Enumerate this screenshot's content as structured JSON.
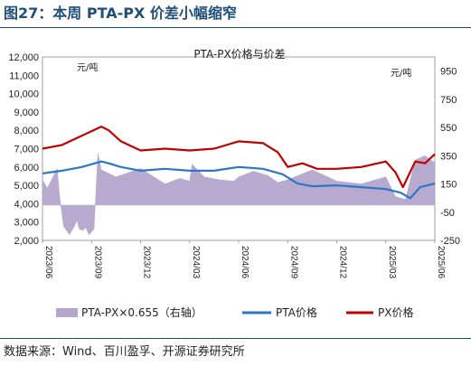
{
  "figure": {
    "label": "图27：本周 PTA-PX 价差小幅缩窄",
    "source": "数据来源：Wind、百川盈孚、开源证券研究所"
  },
  "chart_data": {
    "type": "line",
    "title": "PTA-PX价格与价差",
    "left_unit": "元/吨",
    "right_unit": "元/吨",
    "left_axis": {
      "min": 2000,
      "max": 12000,
      "ticks": [
        "12,000",
        "11,000",
        "10,000",
        "9,000",
        "8,000",
        "7,000",
        "6,000",
        "5,000",
        "4,000",
        "3,000",
        "2,000"
      ]
    },
    "right_axis": {
      "min": -250,
      "max": 1050,
      "ticks": [
        "950",
        "750",
        "550",
        "350",
        "150",
        "-50",
        "-250"
      ]
    },
    "x_labels": [
      "2023/06",
      "2023/09",
      "2023/12",
      "2024/03",
      "2024/06",
      "2024/09",
      "2024/12",
      "2025/03",
      "2025/06"
    ],
    "colors": {
      "spread": "#b4a6cc",
      "pta": "#2e75c8",
      "px": "#c00000"
    },
    "series": [
      {
        "name": "PTA-PX×0.655（右轴）",
        "axis": "right",
        "kind": "area",
        "x": [
          0,
          0.1,
          0.3,
          0.35,
          0.43,
          0.55,
          0.65,
          0.7,
          0.75,
          0.82,
          0.88,
          0.95,
          1.05,
          1.13,
          1.2,
          1.5,
          2,
          2.5,
          2.8,
          3,
          3.05,
          3.3,
          3.6,
          3.9,
          4,
          4.3,
          4.6,
          4.8,
          5,
          5.5,
          6,
          6.5,
          7,
          7.2,
          7.4,
          7.6,
          7.8,
          8
        ],
        "y": [
          180,
          120,
          260,
          60,
          -150,
          -210,
          -150,
          -110,
          -170,
          -180,
          -160,
          -210,
          -170,
          370,
          250,
          200,
          260,
          150,
          190,
          170,
          290,
          200,
          180,
          170,
          200,
          240,
          210,
          160,
          180,
          250,
          170,
          150,
          200,
          60,
          40,
          320,
          350,
          300
        ]
      },
      {
        "name": "PTA价格",
        "axis": "left",
        "kind": "line",
        "x": [
          0,
          0.4,
          0.8,
          1.2,
          1.35,
          1.6,
          2,
          2.5,
          3,
          3.5,
          4,
          4.5,
          4.9,
          5.2,
          5.5,
          6,
          6.5,
          7,
          7.3,
          7.5,
          7.7,
          8
        ],
        "y": [
          5650,
          5800,
          6000,
          6300,
          6200,
          6000,
          5800,
          5900,
          5800,
          5800,
          6000,
          5900,
          5600,
          5100,
          4950,
          5000,
          4900,
          4800,
          4600,
          4300,
          4900,
          5100
        ]
      },
      {
        "name": "PX价格",
        "axis": "left",
        "kind": "line",
        "x": [
          0,
          0.4,
          0.8,
          1.2,
          1.35,
          1.6,
          2,
          2.5,
          3,
          3.5,
          4,
          4.5,
          4.8,
          5,
          5.3,
          5.6,
          6,
          6.5,
          7,
          7.2,
          7.35,
          7.6,
          7.8,
          8
        ],
        "y": [
          7000,
          7200,
          7700,
          8200,
          8000,
          7400,
          6900,
          7000,
          6900,
          7000,
          7400,
          7300,
          6800,
          6000,
          6200,
          5900,
          5900,
          6000,
          6300,
          5700,
          4900,
          6300,
          6200,
          6700
        ]
      }
    ]
  }
}
